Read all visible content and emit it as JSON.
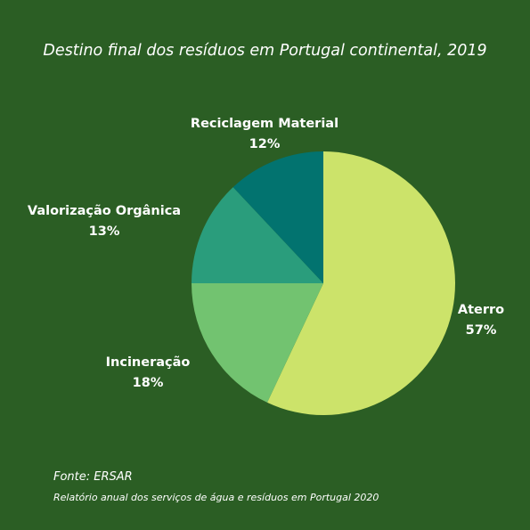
{
  "chart_data": {
    "type": "pie",
    "title": "Destino final dos resíduos em Portugal continental, 2019",
    "slices": [
      {
        "label": "Aterro",
        "value": 57,
        "value_label": "57%",
        "color": "#cce36a"
      },
      {
        "label": "Incineração",
        "value": 18,
        "value_label": "18%",
        "color": "#72c370"
      },
      {
        "label": "Valorização Orgânica",
        "value": 13,
        "value_label": "13%",
        "color": "#2a9d7c"
      },
      {
        "label": "Reciclagem Material",
        "value": 12,
        "value_label": "12%",
        "color": "#02736f"
      }
    ],
    "start_angle_deg": 0,
    "direction": "clockwise"
  },
  "source": {
    "line1": "Fonte: ERSAR",
    "line2": "Relatório anual dos serviços de água e resíduos em Portugal 2020"
  },
  "colors": {
    "background": "#2b5e24",
    "text": "#ffffff"
  }
}
